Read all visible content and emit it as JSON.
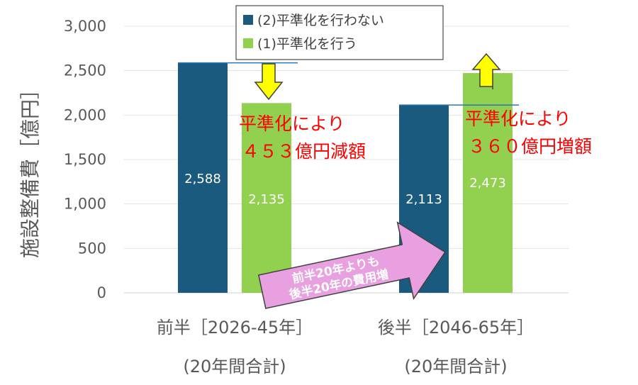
{
  "chart_data": {
    "type": "bar",
    "ylabel": "施設整備費［億円］",
    "ylim": [
      0,
      3000
    ],
    "yticks": [
      0,
      500,
      1000,
      1500,
      2000,
      2500,
      3000
    ],
    "ytick_labels": [
      "0",
      "500",
      "1,000",
      "1,500",
      "2,000",
      "2,500",
      "3,000"
    ],
    "categories": [
      {
        "line1": "前半［2026-45年］",
        "line2": "(20年間合計)"
      },
      {
        "line1": "後半［2046-65年］",
        "line2": "(20年間合計)"
      }
    ],
    "series": [
      {
        "name": "(2)平準化を行わない",
        "values": [
          2588,
          2113
        ],
        "labels": [
          "2,588",
          "2,113"
        ],
        "color": "#1a5a7e"
      },
      {
        "name": "(1)平準化を行う",
        "values": [
          2135,
          2473
        ],
        "labels": [
          "2,135",
          "2,473"
        ],
        "color": "#92d050"
      }
    ],
    "grid": true,
    "legend": "top-center",
    "annotations": [
      {
        "line1": "平準化により",
        "line2": "４５３億円減額",
        "color": "#ff0000",
        "arrow": "down",
        "arrow_color": "#ffff00"
      },
      {
        "line1": "平準化により",
        "line2": "３６０億円増額",
        "color": "#ff0000",
        "arrow": "up",
        "arrow_color": "#ffff00"
      }
    ],
    "callout": {
      "line1": "前半20年よりも",
      "line2": "後半20年の費用増",
      "color": "#e8a0e0"
    }
  }
}
